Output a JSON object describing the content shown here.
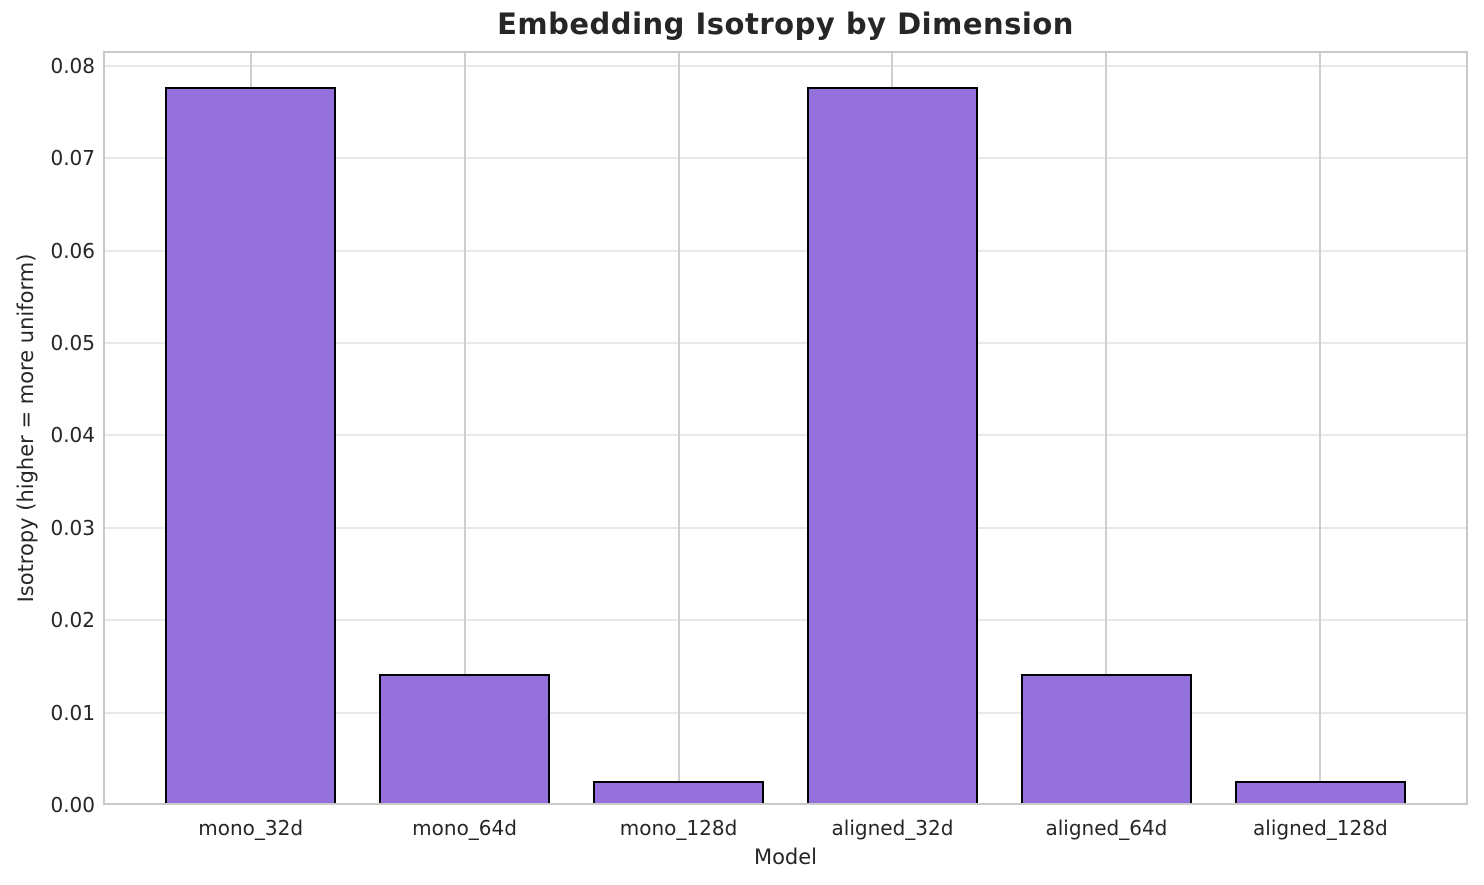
{
  "chart_data": {
    "type": "bar",
    "title": "Embedding Isotropy by Dimension",
    "xlabel": "Model",
    "ylabel": "Isotropy (higher = more uniform)",
    "categories": [
      "mono_32d",
      "mono_64d",
      "mono_128d",
      "aligned_32d",
      "aligned_64d",
      "aligned_128d"
    ],
    "values": [
      0.0777,
      0.0142,
      0.0026,
      0.0777,
      0.0142,
      0.0026
    ],
    "ytick_labels": [
      "0.00",
      "0.01",
      "0.02",
      "0.03",
      "0.04",
      "0.05",
      "0.06",
      "0.07",
      "0.08"
    ],
    "ylim": [
      0,
      0.0816
    ],
    "xlim": [
      -0.69,
      5.69
    ],
    "bar_width_data_units": 0.8,
    "grid": true,
    "legend": null,
    "colors": {
      "bar_fill": "#9370DB",
      "bar_edge": "#000000",
      "grid_horizontal": "#e8e8e8",
      "grid_vertical": "#cfcfcf",
      "spine": "#c9c9c9",
      "text": "#262626",
      "background": "#ffffff"
    }
  }
}
